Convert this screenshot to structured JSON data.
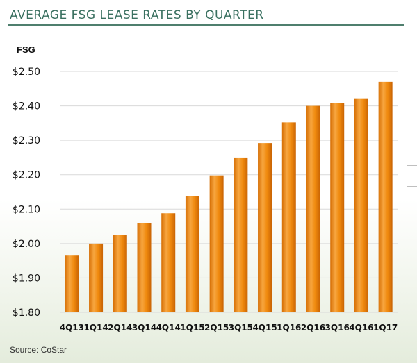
{
  "title": "AVERAGE FSG LEASE RATES BY QUARTER",
  "unit_label": "FSG",
  "source": "Source: CoStar",
  "colors": {
    "title": "#3a7060",
    "rule": "#4f7f6e",
    "bar": "#f08a0e",
    "bar_light": "#f7a640",
    "bar_dark": "#d66f05"
  },
  "chart_data": {
    "type": "bar",
    "title": "AVERAGE FSG LEASE RATES BY QUARTER",
    "xlabel": "",
    "ylabel": "FSG",
    "categories": [
      "4Q13",
      "1Q14",
      "2Q14",
      "3Q14",
      "4Q14",
      "1Q15",
      "2Q15",
      "3Q15",
      "4Q15",
      "1Q16",
      "2Q16",
      "3Q16",
      "4Q16",
      "1Q17"
    ],
    "values": [
      1.965,
      2.0,
      2.025,
      2.06,
      2.088,
      2.138,
      2.198,
      2.25,
      2.292,
      2.352,
      2.4,
      2.408,
      2.422,
      2.47
    ],
    "ylim": [
      1.8,
      2.5
    ],
    "yticks": [
      1.8,
      1.9,
      2.0,
      2.1,
      2.2,
      2.3,
      2.4,
      2.5
    ],
    "ytick_labels": [
      "$1.80",
      "$1.90",
      "$2.00",
      "$2.10",
      "$2.20",
      "$2.30",
      "$2.40",
      "$2.50"
    ],
    "grid": true,
    "legend": "none"
  }
}
